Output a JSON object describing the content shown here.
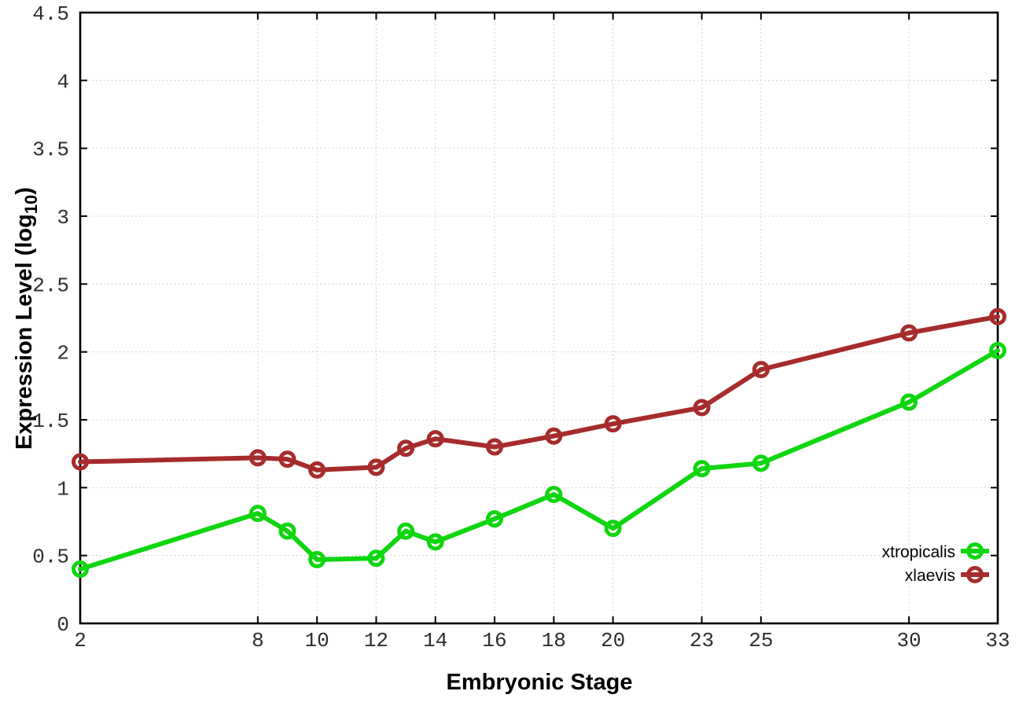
{
  "chart_data": {
    "type": "line",
    "title": "",
    "xlabel": "Embryonic Stage",
    "ylabel": "Expression Level (log10)",
    "ylabel_parts": {
      "pre": "Expression Level (log",
      "sub": "10",
      "post": ")"
    },
    "xlim": [
      2,
      33
    ],
    "ylim": [
      0,
      4.5
    ],
    "grid": true,
    "legend_position": "inside bottom-right",
    "x": [
      2,
      8,
      9,
      10,
      12,
      13,
      14,
      16,
      18,
      20,
      23,
      25,
      30,
      33
    ],
    "xtick_values": [
      2,
      8,
      10,
      12,
      14,
      16,
      18,
      20,
      23,
      25,
      30,
      33
    ],
    "xtick_labels": [
      "2",
      "8",
      "10",
      "12",
      "14",
      "16",
      "18",
      "20",
      "23",
      "25",
      "30",
      "33"
    ],
    "ytick_values": [
      0,
      0.5,
      1,
      1.5,
      2,
      2.5,
      3,
      3.5,
      4,
      4.5
    ],
    "ytick_labels": [
      "0",
      "0.5",
      "1",
      "1.5",
      "2",
      "2.5",
      "3",
      "3.5",
      "4",
      "4.5"
    ],
    "series": [
      {
        "name": "xtropicalis",
        "color": "#0fd60f",
        "marker": "open-circle",
        "values": [
          0.4,
          0.81,
          0.68,
          0.47,
          0.48,
          0.68,
          0.6,
          0.77,
          0.95,
          0.7,
          1.14,
          1.18,
          1.63,
          2.01
        ]
      },
      {
        "name": "xlaevis",
        "color": "#a62c2c",
        "marker": "open-circle",
        "values": [
          1.19,
          1.22,
          1.21,
          1.13,
          1.15,
          1.29,
          1.36,
          1.3,
          1.38,
          1.47,
          1.59,
          1.87,
          2.14,
          2.26
        ]
      }
    ]
  },
  "colors": {
    "background": "#ffffff",
    "grid": "#c4c4c4",
    "axis": "#000000",
    "tick_text": "#2e2e2e"
  }
}
